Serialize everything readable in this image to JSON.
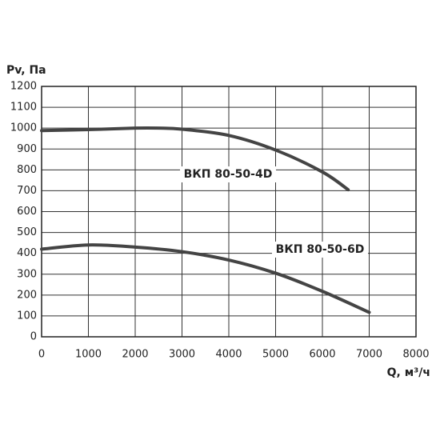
{
  "chart_data": {
    "type": "line",
    "y_label": "Pv, Па",
    "x_label": "Q, м³/ч",
    "x": [
      0,
      1000,
      2000,
      2500,
      3000,
      4000,
      5000,
      6000,
      6550
    ],
    "series": [
      {
        "name": "ВКП 80-50-4D",
        "color": "#444444",
        "x": [
          0,
          1000,
          2000,
          2500,
          3000,
          4000,
          5000,
          6000,
          6550
        ],
        "values": [
          988,
          993,
          1000,
          1000,
          995,
          965,
          895,
          790,
          705
        ]
      },
      {
        "name": "ВКП 80-50-6D",
        "color": "#444444",
        "x": [
          0,
          1000,
          2000,
          3000,
          4000,
          5000,
          6000,
          7000
        ],
        "values": [
          420,
          440,
          430,
          408,
          368,
          305,
          218,
          117
        ]
      }
    ],
    "xlim": [
      0,
      8000
    ],
    "xticks": [
      0,
      1000,
      2000,
      3000,
      4000,
      5000,
      6000,
      7000,
      8000
    ],
    "ylim": [
      0,
      1200
    ],
    "yticks": [
      0,
      100,
      200,
      300,
      400,
      500,
      600,
      700,
      800,
      900,
      1000,
      1100,
      1200
    ],
    "grid": true
  }
}
